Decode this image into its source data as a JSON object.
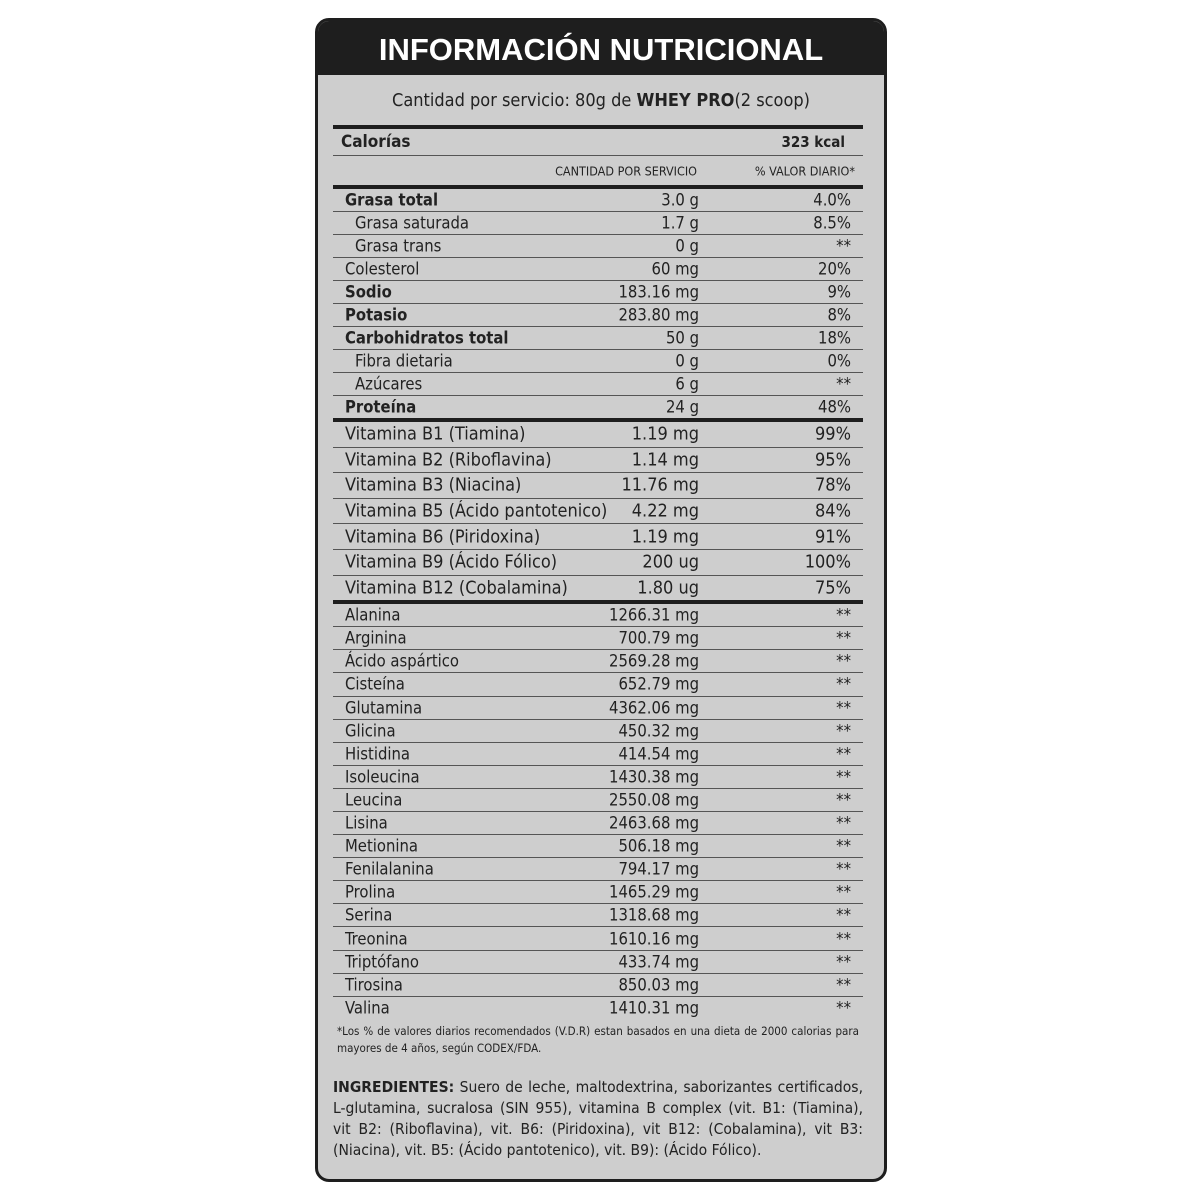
{
  "header": {
    "title": "INFORMACIÓN NUTRICIONAL"
  },
  "serving": {
    "prefix": "Cantidad por servicio: 80g de",
    "product": "WHEY PRO",
    "suffix": "(2 scoop)"
  },
  "calories": {
    "label": "Calorías",
    "value": "323 kcal"
  },
  "columns": {
    "amount": "CANTIDAD POR SERVICIO",
    "daily_value": "% VALOR DIARIO*"
  },
  "nutrients": [
    {
      "label": "Grasa total",
      "amount": "3.0 g",
      "dv": "4.0%",
      "bold": true
    },
    {
      "label": "Grasa saturada",
      "amount": "1.7 g",
      "dv": "8.5%",
      "indent": true
    },
    {
      "label": "Grasa trans",
      "amount": "0 g",
      "dv": "**",
      "indent": true
    },
    {
      "label": "Colesterol",
      "amount": "60 mg",
      "dv": "20%"
    },
    {
      "label": "Sodio",
      "amount": "183.16 mg",
      "dv": "9%",
      "bold": true
    },
    {
      "label": "Potasio",
      "amount": "283.80 mg",
      "dv": "8%",
      "bold": true
    },
    {
      "label": "Carbohidratos total",
      "amount": "50 g",
      "dv": "18%",
      "bold": true
    },
    {
      "label": "Fibra dietaria",
      "amount": "0 g",
      "dv": "0%",
      "indent": true
    },
    {
      "label": "Azúcares",
      "amount": "6 g",
      "dv": "**",
      "indent": true
    },
    {
      "label": "Proteína",
      "amount": "24 g",
      "dv": "48%",
      "bold": true
    }
  ],
  "vitamins": [
    {
      "label": "Vitamina B1 (Tiamina)",
      "amount": "1.19 mg",
      "dv": "99%"
    },
    {
      "label": "Vitamina B2 (Riboflavina)",
      "amount": "1.14 mg",
      "dv": "95%"
    },
    {
      "label": "Vitamina B3 (Niacina)",
      "amount": "11.76 mg",
      "dv": "78%"
    },
    {
      "label": "Vitamina B5 (Ácido pantotenico)",
      "amount": "4.22 mg",
      "dv": "84%"
    },
    {
      "label": "Vitamina B6 (Piridoxina)",
      "amount": "1.19 mg",
      "dv": "91%"
    },
    {
      "label": "Vitamina B9 (Ácido Fólico)",
      "amount": "200 ug",
      "dv": "100%"
    },
    {
      "label": "Vitamina B12 (Cobalamina)",
      "amount": "1.80 ug",
      "dv": "75%"
    }
  ],
  "amino_acids": [
    {
      "label": "Alanina",
      "amount": "1266.31 mg",
      "dv": "**"
    },
    {
      "label": "Arginina",
      "amount": "700.79 mg",
      "dv": "**"
    },
    {
      "label": "Ácido aspártico",
      "amount": "2569.28 mg",
      "dv": "**"
    },
    {
      "label": "Cisteína",
      "amount": "652.79 mg",
      "dv": "**"
    },
    {
      "label": "Glutamina",
      "amount": "4362.06 mg",
      "dv": "**"
    },
    {
      "label": "Glicina",
      "amount": "450.32 mg",
      "dv": "**"
    },
    {
      "label": "Histidina",
      "amount": "414.54 mg",
      "dv": "**"
    },
    {
      "label": "Isoleucina",
      "amount": "1430.38 mg",
      "dv": "**"
    },
    {
      "label": "Leucina",
      "amount": "2550.08 mg",
      "dv": "**"
    },
    {
      "label": "Lisina",
      "amount": "2463.68 mg",
      "dv": "**"
    },
    {
      "label": "Metionina",
      "amount": "506.18 mg",
      "dv": "**"
    },
    {
      "label": "Fenilalanina",
      "amount": "794.17 mg",
      "dv": "**"
    },
    {
      "label": "Prolina",
      "amount": "1465.29 mg",
      "dv": "**"
    },
    {
      "label": "Serina",
      "amount": "1318.68 mg",
      "dv": "**"
    },
    {
      "label": "Treonina",
      "amount": "1610.16 mg",
      "dv": "**"
    },
    {
      "label": "Triptófano",
      "amount": "433.74 mg",
      "dv": "**"
    },
    {
      "label": "Tirosina",
      "amount": "850.03 mg",
      "dv": "**"
    },
    {
      "label": "Valina",
      "amount": "1410.31 mg",
      "dv": "**"
    }
  ],
  "footnote": "*Los % de valores diarios recomendados (V.D.R) estan basados en una dieta de 2000 calorias para mayores de 4 años, según CODEX/FDA.",
  "ingredients": {
    "label": "INGREDIENTES:",
    "text": "Suero de leche, maltodextrina, saborizantes certificados, L-glutamina, sucralosa (SIN 955), vitamina B complex (vit. B1: (Tiamina), vit B2: (Riboflavina), vit. B6: (Piridoxina), vit B12: (Cobalamina), vit B3: (Niacina), vit. B5: (Ácido pantotenico), vit. B9): (Ácido Fólico)."
  }
}
